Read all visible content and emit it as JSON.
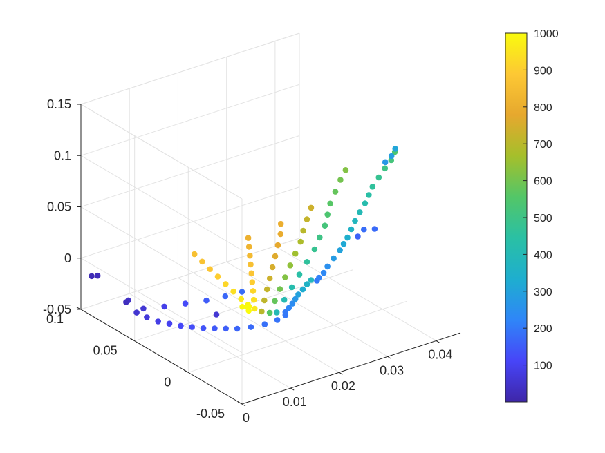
{
  "chart_data": {
    "type": "scatter",
    "dimensions": "3d",
    "title": "",
    "xlabel": "",
    "ylabel": "",
    "zlabel": "",
    "colormap": "parula",
    "colormap_stops": [
      "#3e26a8",
      "#4745f8",
      "#2f86f8",
      "#1eaecf",
      "#2ac0a4",
      "#53c668",
      "#a5bf2b",
      "#e6a82e",
      "#fdc834",
      "#f9fb0e"
    ],
    "x_axis": {
      "lim": [
        0,
        0.045
      ],
      "ticks": [
        "0",
        "0.01",
        "0.02",
        "0.03",
        "0.04"
      ]
    },
    "y_axis": {
      "lim": [
        -0.05,
        0.1
      ],
      "ticks": [
        "-0.05",
        "0",
        "0.05",
        "0.1"
      ]
    },
    "z_axis": {
      "lim": [
        -0.05,
        0.15
      ],
      "ticks": [
        "-0.05",
        "0",
        "0.05",
        "0.1",
        "0.15"
      ]
    },
    "grid": true,
    "colorbar": {
      "lim": [
        0,
        1000
      ],
      "ticks": [
        "100",
        "200",
        "300",
        "400",
        "500",
        "600",
        "700",
        "800",
        "900",
        "1000"
      ],
      "position": "right"
    },
    "series": [
      {
        "points": [
          [
            0.002,
            0.099,
            -0.02,
            20
          ],
          [
            0.003,
            0.098,
            -0.0205,
            25
          ],
          [
            0.006,
            0.083,
            -0.04,
            40
          ],
          [
            0.0055,
            0.073,
            -0.045,
            55
          ],
          [
            0.0065,
            0.068,
            -0.048,
            70
          ],
          [
            0.0075,
            0.062,
            -0.05,
            85
          ],
          [
            0.0085,
            0.056,
            -0.05,
            100
          ],
          [
            0.0095,
            0.05,
            -0.05,
            115
          ],
          [
            0.0105,
            0.044,
            -0.049,
            125
          ],
          [
            0.0115,
            0.038,
            -0.048,
            135
          ],
          [
            0.0125,
            0.032,
            -0.046,
            145
          ],
          [
            0.0135,
            0.026,
            -0.044,
            155
          ],
          [
            0.0145,
            0.02,
            -0.042,
            165
          ],
          [
            0.016,
            0.014,
            -0.039,
            175
          ],
          [
            0.0175,
            0.008,
            -0.035,
            185
          ],
          [
            0.019,
            0.003,
            -0.03,
            190
          ],
          [
            0.02,
            0.0,
            -0.025,
            195
          ],
          [
            0.006,
            0.085,
            -0.043,
            30
          ],
          [
            0.008,
            0.078,
            -0.048,
            60
          ],
          [
            0.011,
            0.072,
            -0.047,
            90
          ],
          [
            0.014,
            0.066,
            -0.045,
            120
          ],
          [
            0.017,
            0.06,
            -0.043,
            150
          ],
          [
            0.02,
            0.056,
            -0.041,
            170
          ],
          [
            0.023,
            0.054,
            -0.04,
            180
          ]
        ]
      },
      {
        "points": [
          [
            0.02,
            0.0,
            -0.022,
            200
          ],
          [
            0.0205,
            -0.001,
            -0.018,
            220
          ],
          [
            0.021,
            -0.002,
            -0.014,
            240
          ],
          [
            0.0215,
            -0.0025,
            -0.01,
            270
          ],
          [
            0.022,
            -0.003,
            -0.006,
            300
          ],
          [
            0.0228,
            -0.0035,
            -0.002,
            330
          ],
          [
            0.0236,
            -0.0038,
            0.002,
            360
          ],
          [
            0.0244,
            -0.004,
            0.005,
            380
          ],
          [
            0.0255,
            -0.0045,
            0.003,
            200
          ],
          [
            0.026,
            -0.0042,
            0.005,
            215
          ],
          [
            0.027,
            -0.004,
            0.008,
            230
          ],
          [
            0.028,
            -0.003,
            0.012,
            250
          ],
          [
            0.0295,
            -0.002,
            0.017,
            280
          ],
          [
            0.031,
            -0.001,
            0.022,
            300
          ],
          [
            0.032,
            0.0,
            0.026,
            320
          ],
          [
            0.033,
            0.001,
            0.03,
            340
          ],
          [
            0.034,
            0.002,
            0.036,
            360
          ],
          [
            0.035,
            0.003,
            0.042,
            380
          ],
          [
            0.0362,
            0.004,
            0.048,
            400
          ],
          [
            0.0375,
            0.005,
            0.054,
            420
          ],
          [
            0.0385,
            0.006,
            0.06,
            440
          ],
          [
            0.0395,
            0.007,
            0.066,
            460
          ],
          [
            0.041,
            0.008,
            0.072,
            480
          ],
          [
            0.0425,
            0.009,
            0.078,
            500
          ],
          [
            0.044,
            0.01,
            0.083,
            520
          ],
          [
            0.045,
            0.011,
            0.089,
            540
          ],
          [
            0.036,
            0.005,
            0.024,
            160
          ],
          [
            0.0375,
            0.006,
            0.028,
            180
          ],
          [
            0.0395,
            0.005,
            0.026,
            175
          ],
          [
            0.043,
            0.011,
            0.082,
            270
          ],
          [
            0.0445,
            0.012,
            0.085,
            290
          ],
          [
            0.0455,
            0.013,
            0.09,
            310
          ]
        ]
      },
      {
        "points": [
          [
            0.016,
            -0.01,
            -0.01,
            400
          ],
          [
            0.018,
            -0.008,
            -0.002,
            410
          ],
          [
            0.02,
            -0.006,
            0.006,
            420
          ],
          [
            0.022,
            -0.004,
            0.014,
            440
          ],
          [
            0.024,
            -0.002,
            0.022,
            460
          ],
          [
            0.026,
            0.0,
            0.03,
            480
          ],
          [
            0.0275,
            0.002,
            0.038,
            500
          ],
          [
            0.029,
            0.004,
            0.046,
            520
          ],
          [
            0.03,
            0.006,
            0.054,
            540
          ],
          [
            0.031,
            0.008,
            0.062,
            560
          ],
          [
            0.0325,
            0.01,
            0.07,
            580
          ],
          [
            0.034,
            0.012,
            0.078,
            600
          ],
          [
            0.0355,
            0.014,
            0.084,
            620
          ]
        ]
      },
      {
        "points": [
          [
            0.015,
            -0.008,
            -0.01,
            560
          ],
          [
            0.0165,
            -0.006,
            -0.002,
            580
          ],
          [
            0.018,
            -0.004,
            0.006,
            600
          ],
          [
            0.0195,
            -0.002,
            0.014,
            620
          ],
          [
            0.021,
            0.0,
            0.022,
            640
          ],
          [
            0.0225,
            0.002,
            0.03,
            660
          ],
          [
            0.024,
            0.004,
            0.038,
            680
          ],
          [
            0.025,
            0.006,
            0.046,
            700
          ],
          [
            0.0262,
            0.008,
            0.054,
            720
          ],
          [
            0.0275,
            0.01,
            0.062,
            735
          ]
        ]
      },
      {
        "points": [
          [
            0.014,
            -0.005,
            -0.009,
            700
          ],
          [
            0.015,
            -0.003,
            -0.001,
            710
          ],
          [
            0.016,
            -0.001,
            0.007,
            720
          ],
          [
            0.017,
            0.001,
            0.015,
            735
          ],
          [
            0.018,
            0.003,
            0.023,
            750
          ],
          [
            0.019,
            0.005,
            0.031,
            765
          ],
          [
            0.02,
            0.007,
            0.039,
            780
          ],
          [
            0.021,
            0.009,
            0.047,
            790
          ],
          [
            0.0215,
            0.011,
            0.055,
            800
          ]
        ]
      },
      {
        "points": [
          [
            0.013,
            -0.003,
            -0.006,
            960
          ],
          [
            0.0135,
            0.0,
            0.0,
            940
          ],
          [
            0.014,
            0.003,
            0.006,
            920
          ],
          [
            0.0145,
            0.006,
            0.012,
            900
          ],
          [
            0.015,
            0.009,
            0.018,
            880
          ],
          [
            0.0155,
            0.012,
            0.024,
            860
          ],
          [
            0.016,
            0.015,
            0.03,
            840
          ],
          [
            0.0165,
            0.018,
            0.036,
            820
          ],
          [
            0.017,
            0.021,
            0.042,
            810
          ]
        ]
      },
      {
        "points": [
          [
            0.0125,
            0.0,
            -0.005,
            980
          ],
          [
            0.012,
            0.005,
            0.0,
            960
          ],
          [
            0.0115,
            0.01,
            0.005,
            940
          ],
          [
            0.011,
            0.015,
            0.01,
            920
          ],
          [
            0.0105,
            0.02,
            0.015,
            900
          ],
          [
            0.01,
            0.025,
            0.02,
            880
          ],
          [
            0.0095,
            0.03,
            0.025,
            870
          ],
          [
            0.009,
            0.035,
            0.03,
            860
          ]
        ]
      },
      {
        "points": [
          [
            0.012,
            -0.002,
            -0.007,
            1000
          ],
          [
            0.0125,
            0.001,
            -0.004,
            990
          ],
          [
            0.0118,
            0.003,
            -0.006,
            995
          ],
          [
            0.0128,
            0.002,
            -0.008,
            1000
          ],
          [
            0.008,
            0.01,
            -0.012,
            60
          ]
        ]
      }
    ]
  }
}
